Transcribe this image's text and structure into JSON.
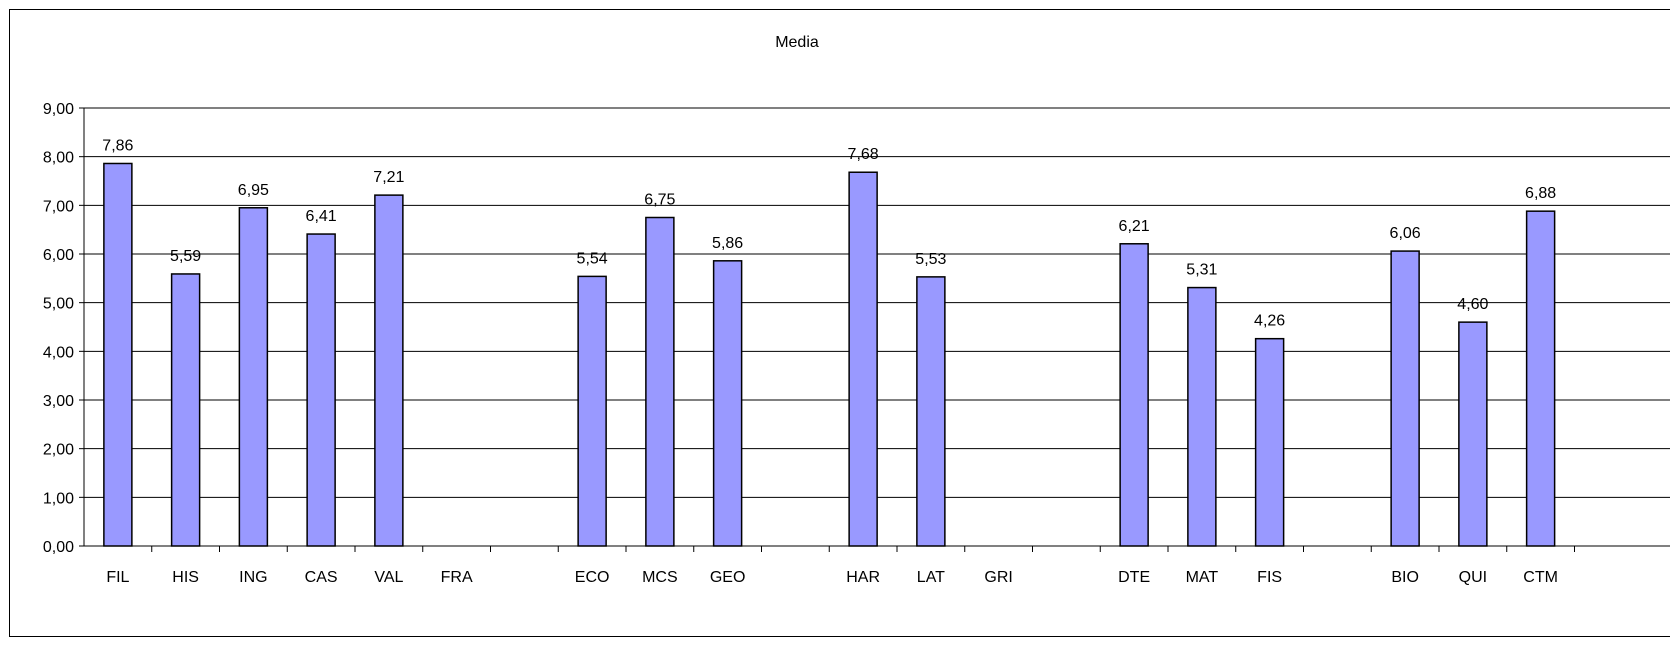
{
  "chart_data": {
    "type": "bar",
    "title": "Media",
    "categories": [
      "FIL",
      "HIS",
      "ING",
      "CAS",
      "VAL",
      "FRA",
      "",
      "ECO",
      "MCS",
      "GEO",
      "",
      "HAR",
      "LAT",
      "GRI",
      "",
      "DTE",
      "MAT",
      "FIS",
      "",
      "BIO",
      "QUI",
      "CTM"
    ],
    "values": [
      7.86,
      5.59,
      6.95,
      6.41,
      7.21,
      null,
      null,
      5.54,
      6.75,
      5.86,
      null,
      7.68,
      5.53,
      null,
      null,
      6.21,
      5.31,
      4.26,
      null,
      6.06,
      4.6,
      6.88
    ],
    "value_labels": [
      "7,86",
      "5,59",
      "6,95",
      "6,41",
      "7,21",
      "",
      "",
      "5,54",
      "6,75",
      "5,86",
      "",
      "7,68",
      "5,53",
      "",
      "",
      "6,21",
      "5,31",
      "4,26",
      "",
      "6,06",
      "4,60",
      "6,88"
    ],
    "ylim": [
      0,
      9
    ],
    "yticks": [
      "0,00",
      "1,00",
      "2,00",
      "3,00",
      "4,00",
      "5,00",
      "6,00",
      "7,00",
      "8,00",
      "9,00"
    ],
    "grid": true,
    "bar_color": "#9999ff",
    "bar_edge": "#000000"
  }
}
